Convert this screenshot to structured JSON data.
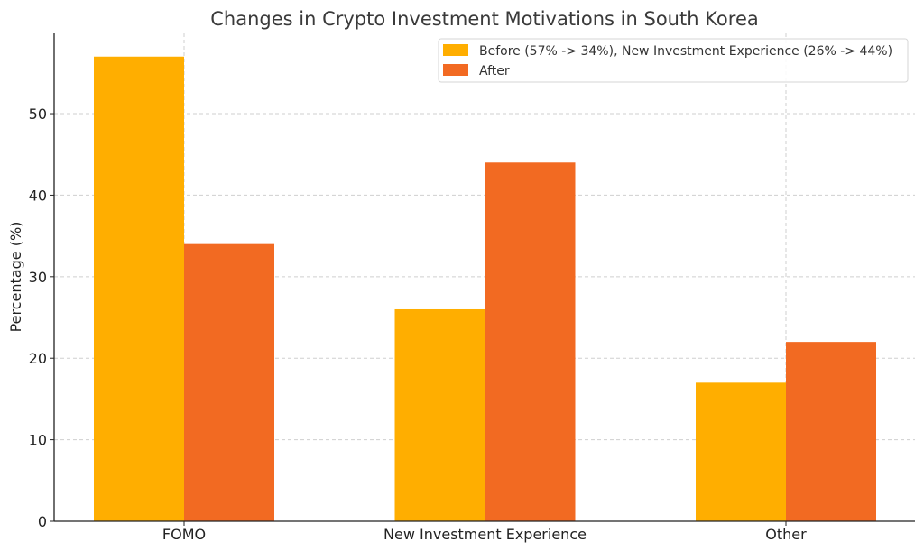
{
  "chart_data": {
    "type": "bar",
    "title": "Changes in Crypto Investment Motivations in South Korea",
    "xlabel": "",
    "ylabel": "Percentage (%)",
    "categories": [
      "FOMO",
      "New Investment Experience",
      "Other"
    ],
    "series": [
      {
        "name": "Before (57% -> 34%), New Investment Experience (26% -> 44%)",
        "values": [
          57,
          26,
          17
        ],
        "color": "#FFAE00"
      },
      {
        "name": "After",
        "values": [
          34,
          44,
          22
        ],
        "color": "#F26A22"
      }
    ],
    "ylim": [
      0,
      59.85
    ],
    "yticks": [
      0,
      10,
      20,
      30,
      40,
      50
    ],
    "grid": true,
    "legend_position": "top-right"
  }
}
